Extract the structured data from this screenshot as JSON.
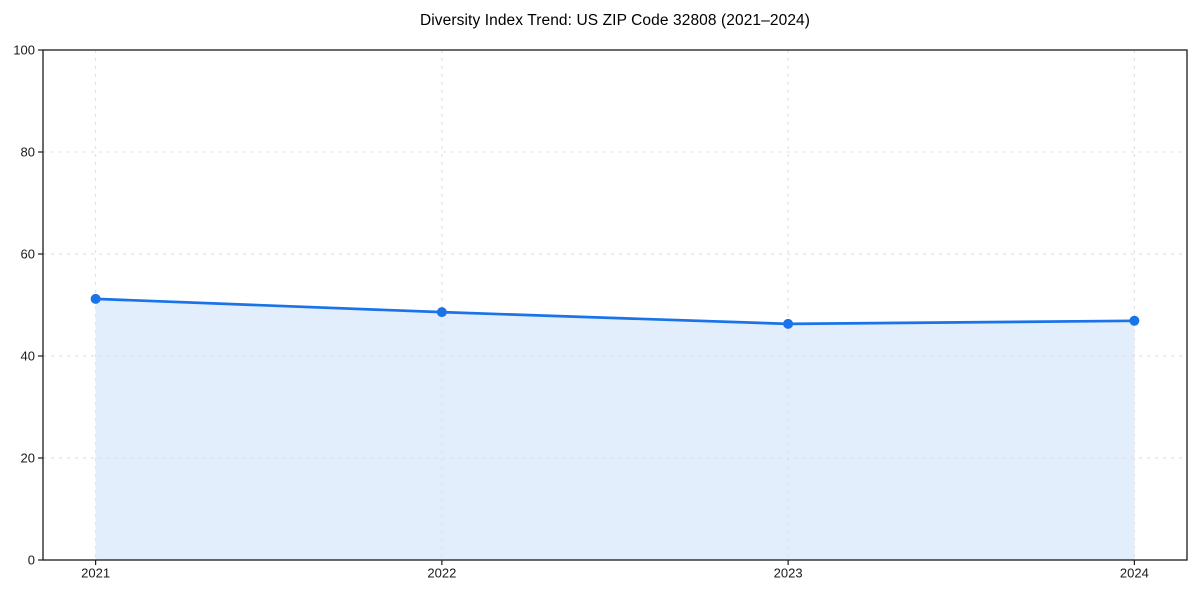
{
  "chart_data": {
    "type": "area",
    "title": "Diversity Index Trend: US ZIP Code 32808 (2021–2024)",
    "series_name": "Diversity Index",
    "categories": [
      "2021",
      "2022",
      "2023",
      "2024"
    ],
    "values": [
      51.2,
      48.6,
      46.3,
      46.9
    ],
    "xlabel": "",
    "ylabel": "",
    "ylim": [
      0,
      100
    ],
    "yticks": [
      0,
      20,
      40,
      60,
      80,
      100
    ],
    "grid": "dashed",
    "legend": "none",
    "colors": {
      "line": "#1a73e8",
      "marker": "#1a73e8",
      "fill": "rgba(26,115,232,0.12)",
      "grid": "#dedede",
      "spine": "#1a1a1a",
      "tick_label": "#1a1a1a",
      "title": "#000000"
    }
  }
}
